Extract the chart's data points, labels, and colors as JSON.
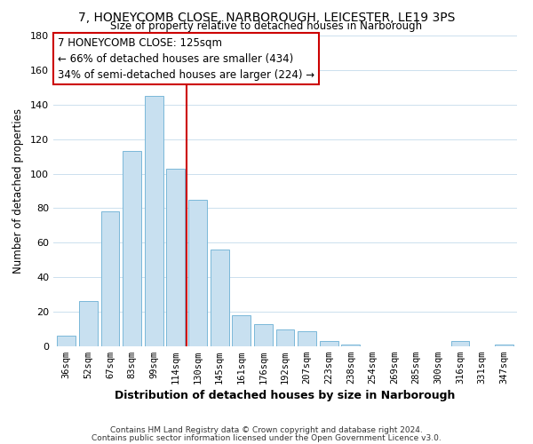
{
  "title": "7, HONEYCOMB CLOSE, NARBOROUGH, LEICESTER, LE19 3PS",
  "subtitle": "Size of property relative to detached houses in Narborough",
  "xlabel": "Distribution of detached houses by size in Narborough",
  "ylabel": "Number of detached properties",
  "footer_line1": "Contains HM Land Registry data © Crown copyright and database right 2024.",
  "footer_line2": "Contains public sector information licensed under the Open Government Licence v3.0.",
  "bar_labels": [
    "36sqm",
    "52sqm",
    "67sqm",
    "83sqm",
    "99sqm",
    "114sqm",
    "130sqm",
    "145sqm",
    "161sqm",
    "176sqm",
    "192sqm",
    "207sqm",
    "223sqm",
    "238sqm",
    "254sqm",
    "269sqm",
    "285sqm",
    "300sqm",
    "316sqm",
    "331sqm",
    "347sqm"
  ],
  "bar_values": [
    6,
    26,
    78,
    113,
    145,
    103,
    85,
    56,
    18,
    13,
    10,
    9,
    3,
    1,
    0,
    0,
    0,
    0,
    3,
    0,
    1
  ],
  "bar_color": "#c8e0f0",
  "bar_edge_color": "#7ab8d9",
  "marker_line_color": "#cc0000",
  "annotation_line1": "7 HONEYCOMB CLOSE: 125sqm",
  "annotation_line2": "← 66% of detached houses are smaller (434)",
  "annotation_line3": "34% of semi-detached houses are larger (224) →",
  "annotation_box_color": "#ffffff",
  "annotation_box_edge": "#cc0000",
  "ylim": [
    0,
    180
  ],
  "yticks": [
    0,
    20,
    40,
    60,
    80,
    100,
    120,
    140,
    160,
    180
  ],
  "background_color": "#ffffff",
  "grid_color": "#cce0ee"
}
